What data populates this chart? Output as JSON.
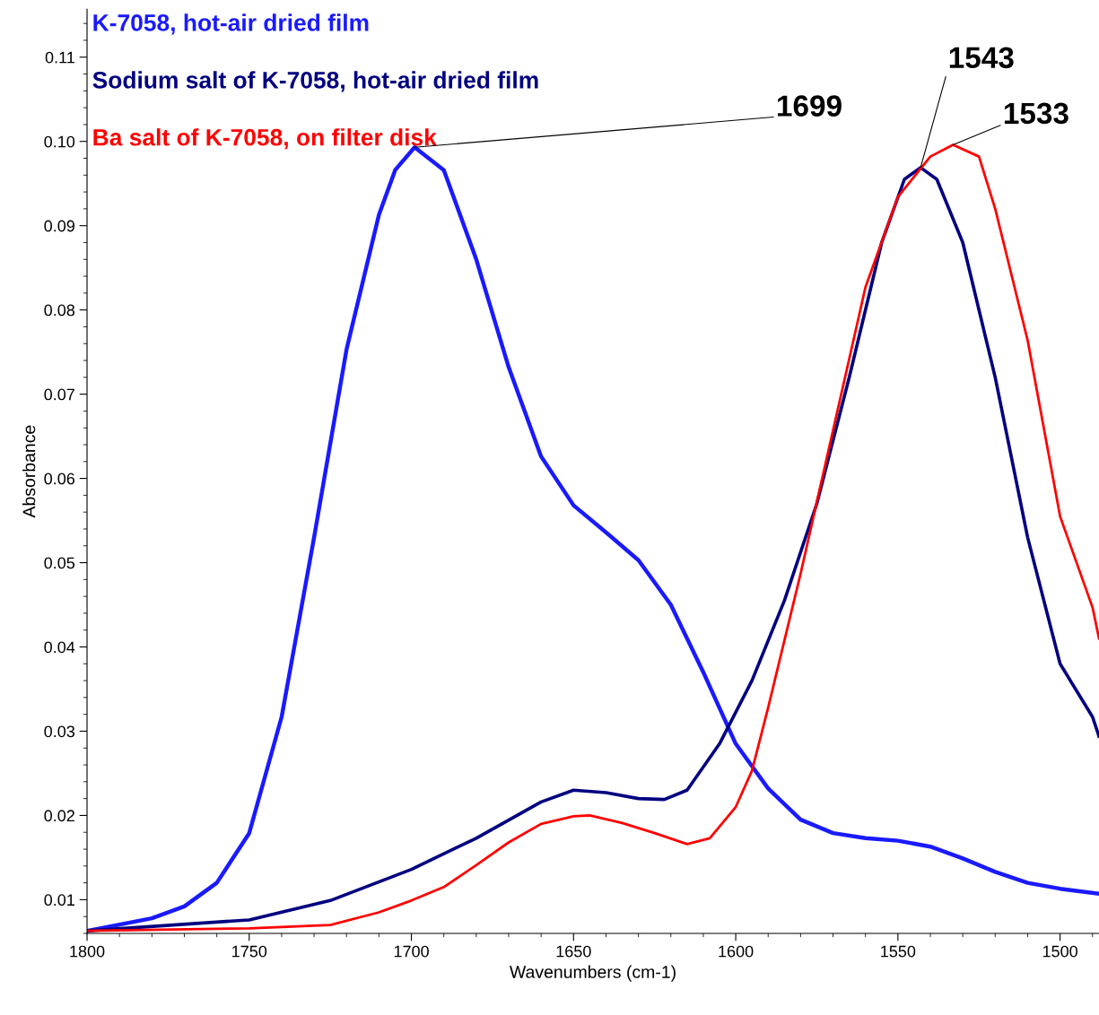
{
  "chart_data": {
    "type": "line",
    "xlabel": "Wavenumbers (cm-1)",
    "ylabel": "Absorbance",
    "xlim": [
      1800,
      1488
    ],
    "ylim": [
      0.006,
      0.1157
    ],
    "xticks": [
      1800,
      1750,
      1700,
      1650,
      1600,
      1550,
      1500
    ],
    "yticks": [
      {
        "value": 0.01,
        "label": "0.01"
      },
      {
        "value": 0.02,
        "label": "0.02"
      },
      {
        "value": 0.03,
        "label": "0.03"
      },
      {
        "value": 0.04,
        "label": "0.04"
      },
      {
        "value": 0.05,
        "label": "0.05"
      },
      {
        "value": 0.06,
        "label": "0.06"
      },
      {
        "value": 0.07,
        "label": "0.07"
      },
      {
        "value": 0.08,
        "label": "0.08"
      },
      {
        "value": 0.09,
        "label": "0.09"
      },
      {
        "value": 0.1,
        "label": "0.10"
      },
      {
        "value": 0.11,
        "label": "0.11"
      }
    ],
    "grid": false,
    "legend": "top left",
    "marker": "none",
    "line_style": "solid",
    "series": [
      {
        "name": "K-7058, hot-air dried film",
        "color": "#1a1aff",
        "x": [
          1800,
          1780,
          1770,
          1760,
          1750,
          1740,
          1730,
          1720,
          1710,
          1705,
          1699,
          1690,
          1680,
          1670,
          1660,
          1650,
          1640,
          1630,
          1620,
          1610,
          1600,
          1590,
          1580,
          1570,
          1560,
          1550,
          1540,
          1530,
          1520,
          1510,
          1500,
          1488
        ],
        "values": [
          0.0063,
          0.0078,
          0.0092,
          0.012,
          0.0179,
          0.0317,
          0.053,
          0.0753,
          0.0913,
          0.0966,
          0.0993,
          0.0966,
          0.086,
          0.0732,
          0.0626,
          0.0568,
          0.0536,
          0.0503,
          0.045,
          0.037,
          0.0285,
          0.0232,
          0.0195,
          0.0179,
          0.0173,
          0.017,
          0.0163,
          0.0149,
          0.0133,
          0.012,
          0.0113,
          0.0107
        ]
      },
      {
        "name": "Sodium salt of K-7058, hot-air dried film",
        "color": "#000080",
        "x": [
          1800,
          1750,
          1725,
          1700,
          1680,
          1660,
          1650,
          1640,
          1630,
          1622,
          1615,
          1605,
          1595,
          1585,
          1575,
          1565,
          1555,
          1548,
          1543,
          1538,
          1530,
          1520,
          1510,
          1500,
          1490,
          1488
        ],
        "values": [
          0.0063,
          0.0076,
          0.0099,
          0.0136,
          0.0173,
          0.0216,
          0.023,
          0.0227,
          0.022,
          0.0219,
          0.023,
          0.0285,
          0.036,
          0.0455,
          0.057,
          0.072,
          0.088,
          0.0955,
          0.0969,
          0.0955,
          0.088,
          0.072,
          0.053,
          0.038,
          0.0317,
          0.0294
        ]
      },
      {
        "name": "Ba salt of K-7058, on filter disk",
        "color": "#ff0000",
        "x": [
          1800,
          1750,
          1725,
          1710,
          1700,
          1690,
          1680,
          1670,
          1660,
          1650,
          1645,
          1635,
          1625,
          1615,
          1608,
          1600,
          1595,
          1590,
          1580,
          1570,
          1560,
          1550,
          1540,
          1533,
          1525,
          1520,
          1510,
          1500,
          1490,
          1488
        ],
        "values": [
          0.0063,
          0.0066,
          0.007,
          0.0085,
          0.0099,
          0.0115,
          0.0141,
          0.0168,
          0.019,
          0.0199,
          0.02,
          0.0191,
          0.0179,
          0.0166,
          0.0173,
          0.021,
          0.0253,
          0.0328,
          0.0487,
          0.0657,
          0.0827,
          0.0934,
          0.0982,
          0.0996,
          0.0982,
          0.092,
          0.0764,
          0.0555,
          0.0447,
          0.041
        ]
      }
    ],
    "annotations": [
      {
        "text": "1699",
        "x": 1699,
        "y": 0.0993
      },
      {
        "text": "1543",
        "x": 1543,
        "y": 0.0969
      },
      {
        "text": "1533",
        "x": 1533,
        "y": 0.0996
      }
    ]
  }
}
